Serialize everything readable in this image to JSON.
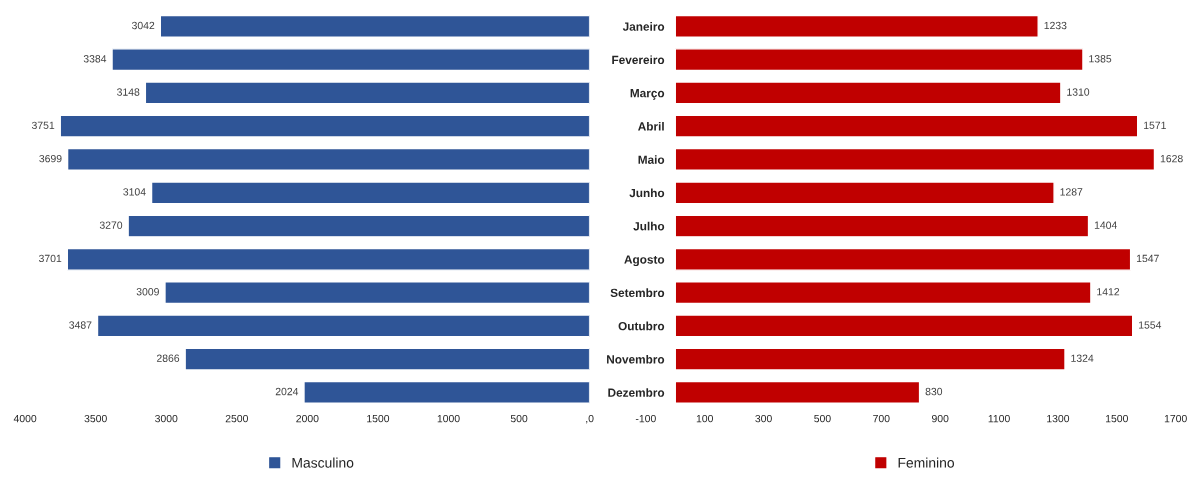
{
  "chart_data": [
    {
      "type": "bar",
      "orientation": "horizontal",
      "categories": [
        "Janeiro",
        "Fevereiro",
        "Março",
        "Abril",
        "Maio",
        "Junho",
        "Julho",
        "Agosto",
        "Setembro",
        "Outubro",
        "Novembro",
        "Dezembro"
      ],
      "series": [
        {
          "name": "Masculino",
          "color": "#2f5597",
          "values": [
            3042,
            3384,
            3148,
            3751,
            3699,
            3104,
            3270,
            3701,
            3009,
            3487,
            2866,
            2024
          ]
        }
      ],
      "xlim": [
        4000,
        0
      ],
      "xticks": [
        4000,
        3500,
        3000,
        2500,
        2000,
        1500,
        1000,
        500,
        {
          "value": 0,
          "label": ",0"
        }
      ],
      "data_labels": true,
      "legend": "bottom",
      "grid": false
    },
    {
      "type": "bar",
      "orientation": "horizontal",
      "categories": [
        null,
        null,
        null,
        null,
        null,
        null,
        null,
        null,
        null,
        null,
        null,
        null
      ],
      "series": [
        {
          "name": "Feminino",
          "color": "#c00000",
          "values": [
            1233,
            1385,
            1310,
            1571,
            1628,
            1287,
            1404,
            1547,
            1412,
            1554,
            1324,
            830
          ]
        }
      ],
      "xlim": [
        -100,
        1700
      ],
      "xticks": [
        -100,
        100,
        300,
        500,
        700,
        900,
        1100,
        1300,
        1500,
        1700
      ],
      "tick_labels": "x",
      "data_labels": true,
      "legend": "bottom",
      "grid": false
    }
  ]
}
